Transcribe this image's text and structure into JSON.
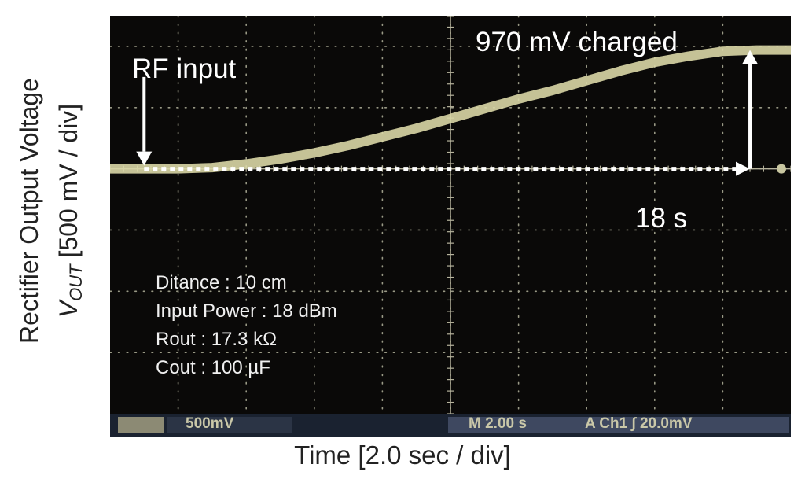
{
  "chart_data": {
    "type": "line",
    "title": "",
    "xlabel": "Time [2.0 sec / div]",
    "ylabel_line1": "Rectifier Output Voltage",
    "ylabel_var_main": "V",
    "ylabel_var_sub": "OUT",
    "ylabel_units": "[500 mV / div]",
    "xlim": [
      0,
      20
    ],
    "ylim": [
      -2.0,
      1.25
    ],
    "grid": true,
    "series": [
      {
        "x": [
          0,
          1,
          2,
          3,
          4,
          5,
          6,
          7,
          8,
          9,
          10,
          11,
          12,
          13,
          14,
          15,
          16,
          17,
          18,
          19,
          20
        ],
        "y": [
          0.0,
          0.0,
          0.0,
          0.01,
          0.04,
          0.08,
          0.13,
          0.19,
          0.26,
          0.33,
          0.41,
          0.49,
          0.57,
          0.64,
          0.72,
          0.8,
          0.87,
          0.92,
          0.96,
          0.97,
          0.97
        ]
      }
    ],
    "annotations": {
      "rf_input": {
        "text": "RF input",
        "x": 1.0
      },
      "charged": {
        "text": "970 mV charged",
        "x": 18.8,
        "value_mV": 970
      },
      "duration": {
        "text": "18 s",
        "x_start": 1.0,
        "x_end": 18.8
      }
    },
    "settings": [
      "Ditance : 10 cm",
      "Input Power : 18 dBm",
      "Rout : 17.3 kΩ",
      "Cout : 100 µF"
    ],
    "status_bar": {
      "ch_scale": "500mV",
      "timebase": "M 2.00 s",
      "trigger": "A  Ch1  ∫  20.0mV"
    }
  }
}
